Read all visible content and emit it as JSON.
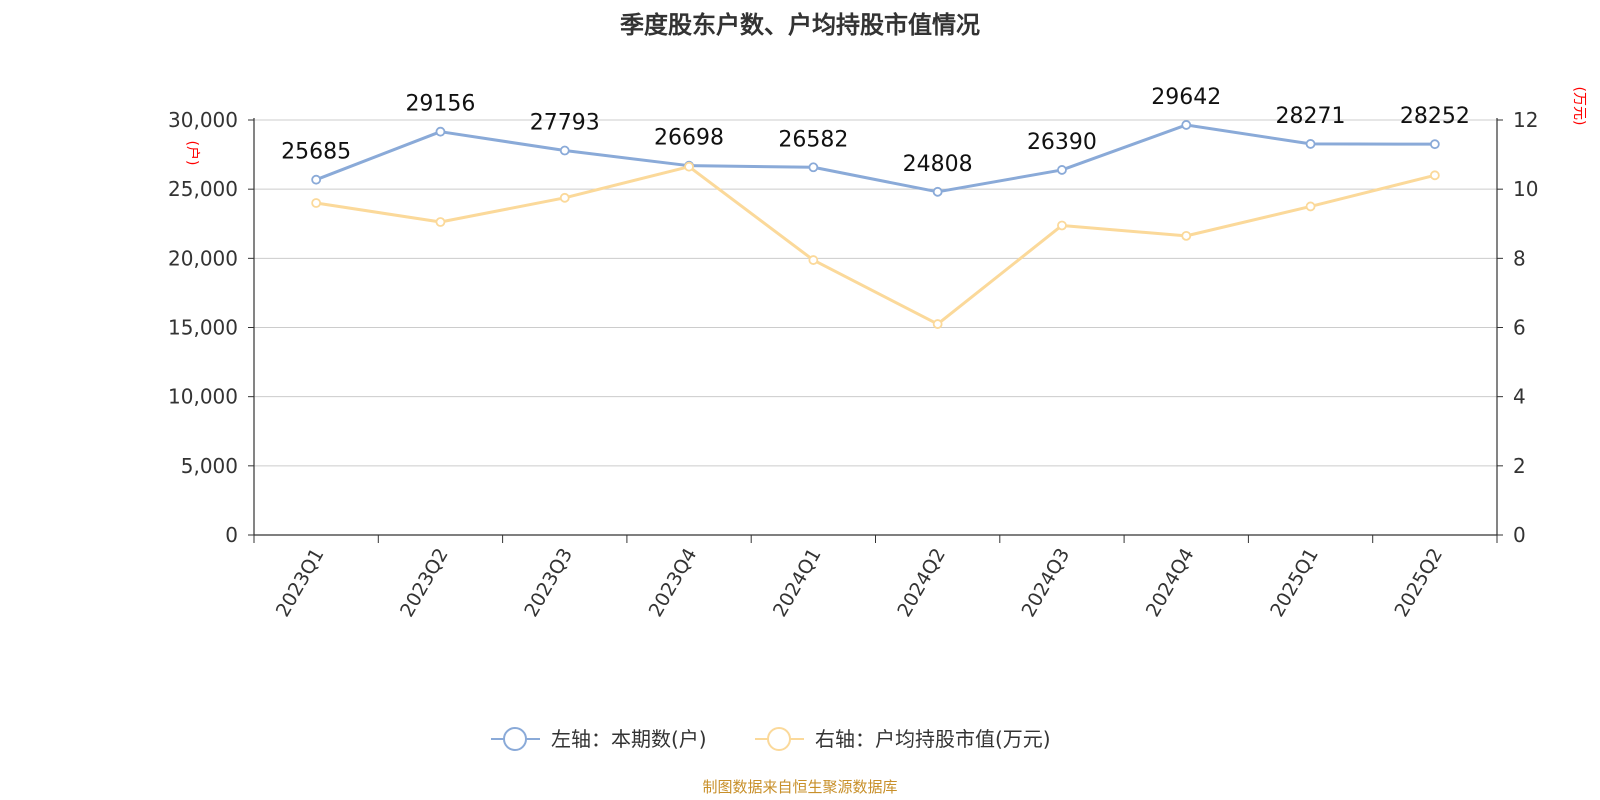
{
  "source_note": "制图数据来自恒生聚源数据库",
  "colors": {
    "series1": "#8aaad8",
    "series2": "#fbd99a",
    "unit": "#ff0000",
    "source": "#c8902a",
    "grid": "#cccccc",
    "axis": "#333333"
  },
  "chart_data": {
    "type": "line",
    "title": "季度股东户数、户均持股市值情况",
    "categories": [
      "2023Q1",
      "2023Q2",
      "2023Q3",
      "2023Q4",
      "2024Q1",
      "2024Q2",
      "2024Q3",
      "2024Q4",
      "2025Q1",
      "2025Q2"
    ],
    "y_left": {
      "unit": "(户)",
      "min": 0,
      "max": 30000,
      "ticks": [
        "0",
        "5,000",
        "10,000",
        "15,000",
        "20,000",
        "25,000",
        "30,000"
      ]
    },
    "y_right": {
      "unit": "(万元)",
      "min": 0,
      "max": 12,
      "ticks": [
        "0",
        "2",
        "4",
        "6",
        "8",
        "10",
        "12"
      ]
    },
    "grid": true,
    "legend_position": "bottom",
    "series": [
      {
        "name": "左轴：本期数(户)",
        "axis": "left",
        "values": [
          25685,
          29156,
          27793,
          26698,
          26582,
          24808,
          26390,
          29642,
          28271,
          28252
        ],
        "labels": [
          "25685",
          "29156",
          "27793",
          "26698",
          "26582",
          "24808",
          "26390",
          "29642",
          "28271",
          "28252"
        ]
      },
      {
        "name": "右轴：户均持股市值(万元)",
        "axis": "right",
        "values": [
          9.6,
          9.05,
          9.75,
          10.65,
          7.95,
          6.1,
          8.95,
          8.65,
          9.5,
          10.4
        ]
      }
    ]
  }
}
